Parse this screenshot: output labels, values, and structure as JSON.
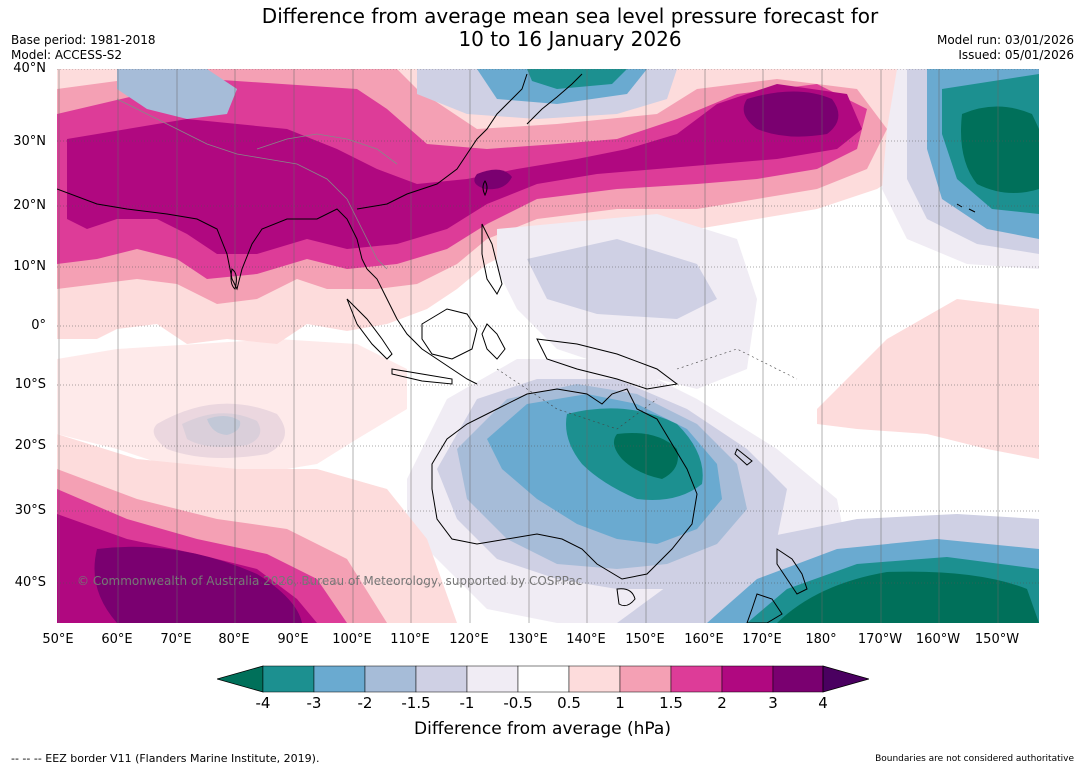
{
  "title": {
    "line1": "Difference from average mean sea level pressure forecast for",
    "line2": "10 to 16 January 2026"
  },
  "meta_left": {
    "base_period": "Base period: 1981-2018",
    "model": "Model: ACCESS-S2"
  },
  "meta_right": {
    "model_run": "Model run: 03/01/2026",
    "issued": "Issued: 05/01/2026"
  },
  "map": {
    "copyright": "© Commonwealth of Australia 2026, Bureau of Meteorology, supported by COSPPac",
    "lat_labels": [
      "40°N",
      "30°N",
      "20°N",
      "10°N",
      "0°",
      "10°S",
      "20°S",
      "30°S",
      "40°S"
    ],
    "lon_labels": [
      "50°E",
      "60°E",
      "70°E",
      "80°E",
      "90°E",
      "100°E",
      "110°E",
      "120°E",
      "130°E",
      "140°E",
      "150°E",
      "160°E",
      "170°E",
      "180°",
      "170°W",
      "160°W",
      "150°W"
    ]
  },
  "colorbar": {
    "title": "Difference from average (hPa)",
    "labels": [
      "-4",
      "-3",
      "-2",
      "-1.5",
      "-1",
      "-0.5",
      "0.5",
      "1",
      "1.5",
      "2",
      "3",
      "4"
    ],
    "colors": {
      "below_-4": "#00705a",
      "-4_-3": "#1c9090",
      "-3_-2": "#6aaad0",
      "-2_-1.5": "#a6bcd8",
      "-1.5_-1": "#cfd0e4",
      "-1_-0.5": "#f0ecf4",
      "-0.5_0.5": "#ffffff",
      "0.5_1": "#fddcdc",
      "1_1.5": "#f4a0b4",
      "1.5_2": "#dd3c98",
      "2_3": "#b00880",
      "3_4": "#7a0070",
      "above_4": "#4a0060"
    }
  },
  "footer": {
    "eez": "--  --  -- EEZ border V11 (Flanders Marine Institute, 2019).",
    "boundaries": "Boundaries are not considered authoritative"
  }
}
